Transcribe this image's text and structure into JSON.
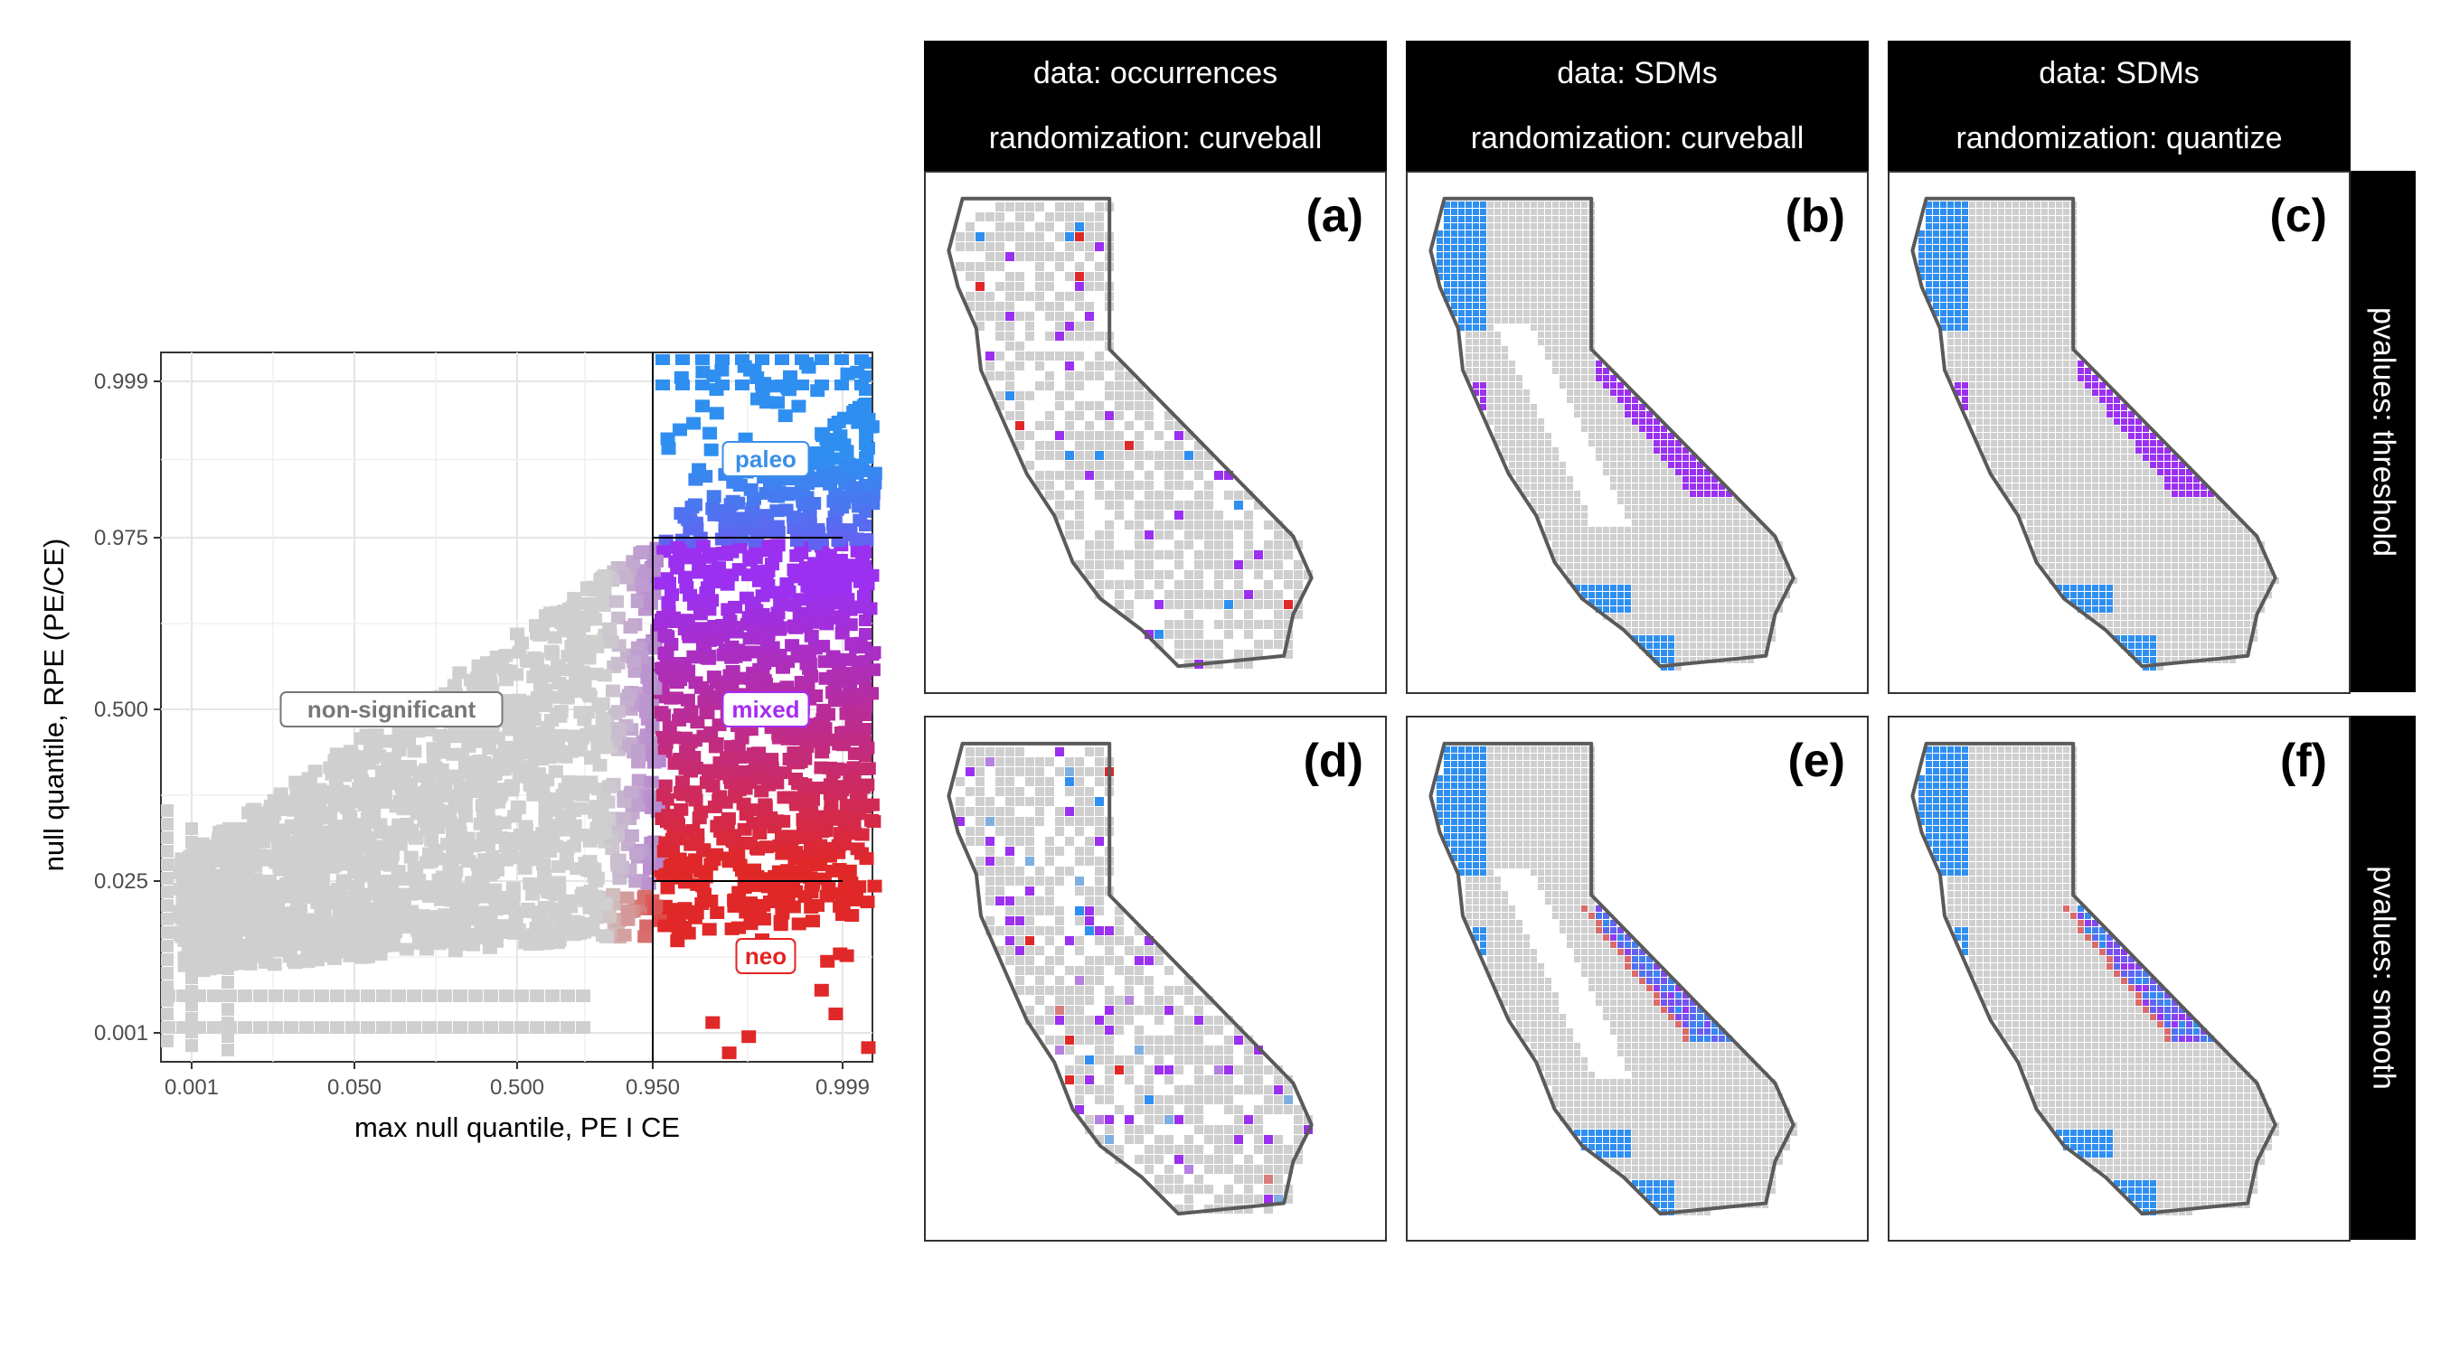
{
  "chart_data": [
    {
      "type": "scatter",
      "title": "",
      "xlabel": "max null quantile, PE I CE",
      "ylabel": "null quantile, RPE (PE/CE)",
      "x_ticks": [
        "0.001",
        "0.050",
        "0.500",
        "0.950",
        "0.999"
      ],
      "y_ticks": [
        "0.999",
        "0.975",
        "0.500",
        "0.025",
        "0.001"
      ],
      "grid": true,
      "categories": [
        {
          "name": "paleo",
          "color": "#3b8fe8"
        },
        {
          "name": "mixed",
          "color": "#a62cf2"
        },
        {
          "name": "neo",
          "color": "#e52222"
        },
        {
          "name": "non-significant",
          "color": "#777777"
        }
      ],
      "threshold_lines": {
        "x": "0.950",
        "y_upper": "0.975",
        "y_lower": "0.025"
      }
    },
    {
      "type": "heatmap",
      "columns": [
        {
          "data": "data: occurrences",
          "randomization": "randomization: curveball"
        },
        {
          "data": "data: SDMs",
          "randomization": "randomization: curveball"
        },
        {
          "data": "data: SDMs",
          "randomization": "randomization: quantize"
        }
      ],
      "rows": [
        "pvalues: threshold",
        "pvalues: smooth"
      ],
      "panels": [
        "(a)",
        "(b)",
        "(c)",
        "(d)",
        "(e)",
        "(f)"
      ]
    }
  ],
  "colors": {
    "gray": "#cfcfcf",
    "blue": "#2f8ff0",
    "purple": "#9b30f0",
    "red": "#e02828",
    "outline": "#5a5a5a"
  }
}
